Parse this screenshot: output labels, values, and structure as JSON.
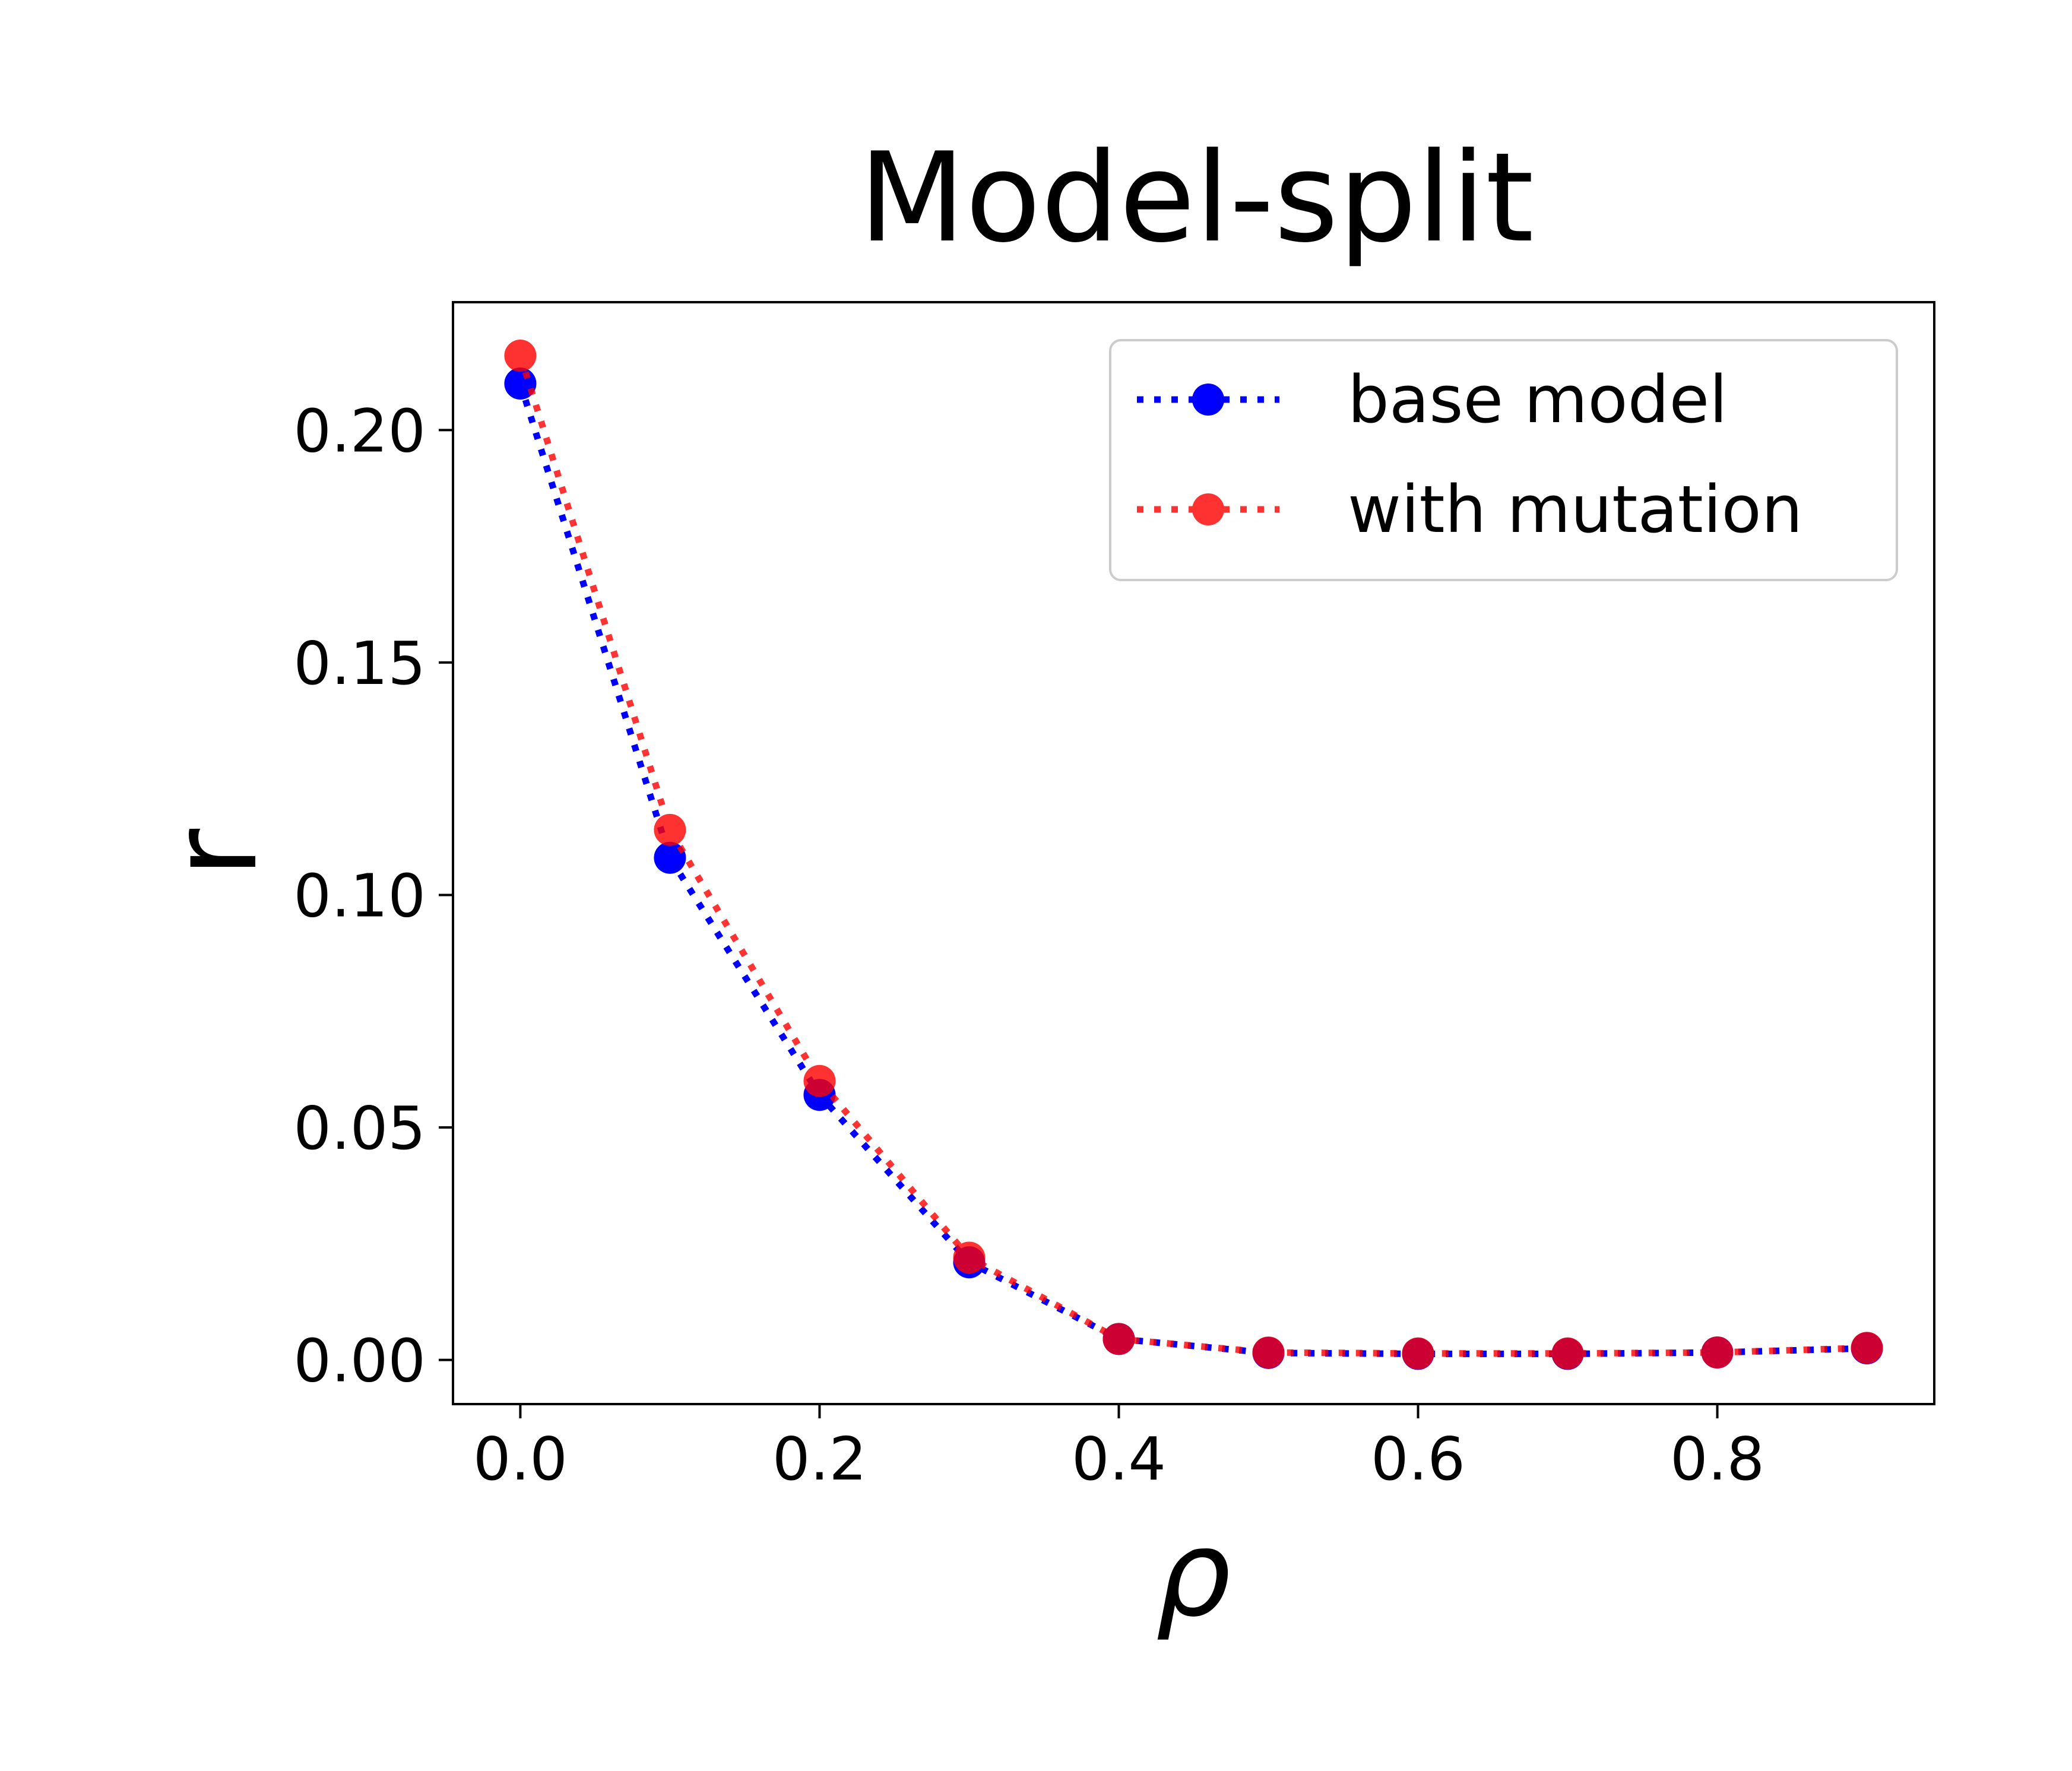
{
  "chart_data": {
    "type": "line",
    "title": "Model-split",
    "xlabel": "ρ",
    "ylabel": "r",
    "xlim": [
      -0.045,
      0.945
    ],
    "ylim": [
      -0.0095,
      0.2275
    ],
    "xticks": [
      {
        "value": 0.0,
        "label": "0.0"
      },
      {
        "value": 0.2,
        "label": "0.2"
      },
      {
        "value": 0.4,
        "label": "0.4"
      },
      {
        "value": 0.6,
        "label": "0.6"
      },
      {
        "value": 0.8,
        "label": "0.8"
      }
    ],
    "yticks": [
      {
        "value": 0.0,
        "label": "0.00"
      },
      {
        "value": 0.05,
        "label": "0.05"
      },
      {
        "value": 0.1,
        "label": "0.10"
      },
      {
        "value": 0.15,
        "label": "0.15"
      },
      {
        "value": 0.2,
        "label": "0.20"
      }
    ],
    "x": [
      0.0,
      0.1,
      0.2,
      0.3,
      0.4,
      0.5,
      0.6,
      0.7,
      0.8,
      0.9
    ],
    "series": [
      {
        "name": "base model",
        "color": "#0000ff",
        "opacity": 1.0,
        "values": [
          0.21,
          0.108,
          0.057,
          0.021,
          0.0045,
          0.0015,
          0.0013,
          0.0013,
          0.0016,
          0.0025
        ]
      },
      {
        "name": "with mutation",
        "color": "#ff0000",
        "opacity": 0.8,
        "values": [
          0.216,
          0.114,
          0.06,
          0.022,
          0.0045,
          0.0016,
          0.0014,
          0.0014,
          0.0016,
          0.0026
        ]
      }
    ],
    "line_style": "dotted",
    "marker": "circle",
    "grid": false,
    "legend_position": "top-right"
  }
}
